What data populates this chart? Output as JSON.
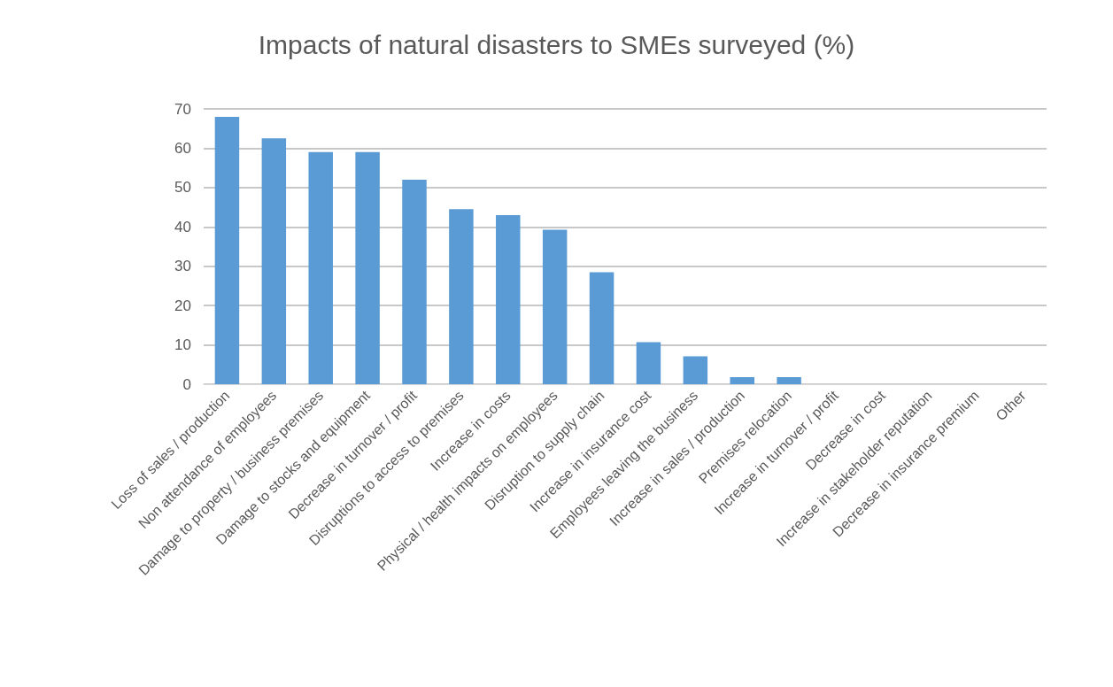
{
  "chart_data": {
    "type": "bar",
    "title": "Impacts of natural disasters to SMEs surveyed (%)",
    "categories": [
      "Loss of sales / production",
      "Non attendance of employees",
      "Damage to property / business premises",
      "Damage to stocks and equipment",
      "Decrease in turnover / profit",
      "Disruptions to access to premises",
      "Increase in costs",
      "Physical / health impacts on employees",
      "Disruption to supply chain",
      "Increase in insurance cost",
      "Employees leaving the business",
      "Increase in sales / production",
      "Premises relocation",
      "Increase in turnover / profit",
      "Decrease in cost",
      "Increase in stakeholder reputation",
      "Decrease in insurance premium",
      "Other"
    ],
    "values": [
      68,
      62.5,
      59,
      59,
      52,
      44.5,
      43,
      39.3,
      28.5,
      10.7,
      7.1,
      1.8,
      1.8,
      0,
      0,
      0,
      0,
      0
    ],
    "color": "#5b9bd5",
    "ylim": [
      0,
      70
    ],
    "yticks": [
      0,
      10,
      20,
      30,
      40,
      50,
      60,
      70
    ],
    "grid": "y"
  }
}
